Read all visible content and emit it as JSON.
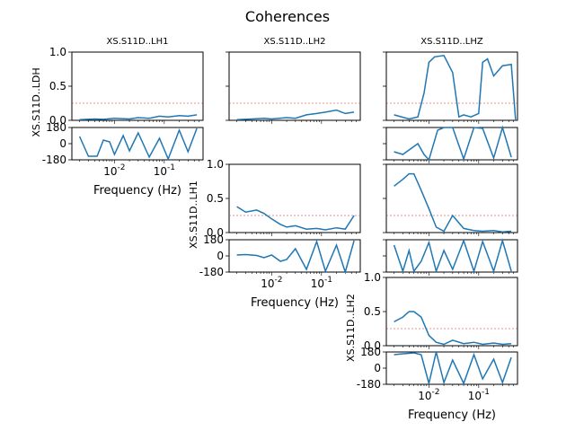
{
  "title": "Coherences",
  "chart_data": [
    {
      "id": "coh_ldh_lh1",
      "type": "line",
      "kind": "coherence",
      "title": "XS.S11D..LH1",
      "ylabel": "XS.S11D..LDH",
      "xlabel": "",
      "x_scale": "log",
      "xlim": [
        0.0014,
        0.6
      ],
      "ylim": [
        0,
        1.0
      ],
      "yticks": [
        "0.0",
        "0.5",
        "1.0"
      ],
      "reference_line": 0.25,
      "series": [
        {
          "x": [
            0.002,
            0.004,
            0.006,
            0.01,
            0.02,
            0.03,
            0.05,
            0.08,
            0.12,
            0.2,
            0.3,
            0.45
          ],
          "y": [
            0.01,
            0.02,
            0.015,
            0.03,
            0.02,
            0.04,
            0.03,
            0.06,
            0.05,
            0.07,
            0.06,
            0.08
          ]
        }
      ]
    },
    {
      "id": "ph_ldh_lh1",
      "type": "line",
      "kind": "phase",
      "xlabel": "Frequency (Hz)",
      "x_scale": "log",
      "xlim": [
        0.0014,
        0.6
      ],
      "ylim": [
        -180,
        180
      ],
      "yticks": [
        "-180",
        "0",
        "180"
      ],
      "xticks": [
        "10^-2",
        "10^-1"
      ],
      "series": [
        {
          "x": [
            0.002,
            0.003,
            0.0045,
            0.006,
            0.008,
            0.01,
            0.015,
            0.02,
            0.03,
            0.05,
            0.08,
            0.12,
            0.2,
            0.3,
            0.45
          ],
          "y": [
            80,
            -140,
            -140,
            40,
            20,
            -120,
            90,
            -80,
            120,
            -150,
            60,
            -170,
            150,
            -90,
            170
          ]
        }
      ]
    },
    {
      "id": "coh_ldh_lh2",
      "type": "line",
      "kind": "coherence",
      "title": "XS.S11D..LH2",
      "ylabel": "",
      "xlabel": "",
      "x_scale": "log",
      "xlim": [
        0.0014,
        0.6
      ],
      "ylim": [
        0,
        1.0
      ],
      "yticks": [
        "",
        "",
        ""
      ],
      "reference_line": 0.25,
      "series": [
        {
          "x": [
            0.002,
            0.004,
            0.007,
            0.01,
            0.02,
            0.03,
            0.05,
            0.08,
            0.12,
            0.2,
            0.3,
            0.45
          ],
          "y": [
            0.01,
            0.02,
            0.03,
            0.02,
            0.04,
            0.03,
            0.08,
            0.1,
            0.12,
            0.15,
            0.1,
            0.12
          ]
        }
      ]
    },
    {
      "id": "coh_ldh_lhz",
      "type": "line",
      "kind": "coherence",
      "title": "XS.S11D..LHZ",
      "ylabel": "",
      "xlabel": "",
      "x_scale": "log",
      "xlim": [
        0.0014,
        0.6
      ],
      "ylim": [
        0,
        1.0
      ],
      "yticks": [
        "",
        "",
        ""
      ],
      "reference_line": 0.25,
      "series": [
        {
          "x": [
            0.002,
            0.004,
            0.006,
            0.008,
            0.01,
            0.013,
            0.02,
            0.03,
            0.04,
            0.05,
            0.07,
            0.1,
            0.12,
            0.15,
            0.2,
            0.3,
            0.45,
            0.55
          ],
          "y": [
            0.08,
            0.02,
            0.05,
            0.4,
            0.85,
            0.93,
            0.95,
            0.7,
            0.05,
            0.08,
            0.05,
            0.1,
            0.85,
            0.9,
            0.65,
            0.8,
            0.82,
            0.0
          ]
        }
      ]
    },
    {
      "id": "ph_ldh_lhz",
      "type": "line",
      "kind": "phase",
      "xlabel": "",
      "x_scale": "log",
      "xlim": [
        0.0014,
        0.6
      ],
      "ylim": [
        -180,
        180
      ],
      "yticks": [
        "",
        "",
        ""
      ],
      "series": [
        {
          "x": [
            0.002,
            0.003,
            0.004,
            0.006,
            0.008,
            0.01,
            0.015,
            0.02,
            0.03,
            0.05,
            0.08,
            0.12,
            0.2,
            0.3,
            0.45
          ],
          "y": [
            -90,
            -120,
            -70,
            0,
            -120,
            -180,
            150,
            180,
            180,
            -170,
            180,
            170,
            -160,
            180,
            -150
          ]
        }
      ]
    },
    {
      "id": "coh_lh1_lh2",
      "type": "line",
      "kind": "coherence",
      "ylabel": "XS.S11D..LH1",
      "xlabel": "",
      "x_scale": "log",
      "xlim": [
        0.0014,
        0.6
      ],
      "ylim": [
        0,
        1.0
      ],
      "yticks": [
        "0.0",
        "0.5",
        "1.0"
      ],
      "reference_line": 0.25,
      "series": [
        {
          "x": [
            0.002,
            0.003,
            0.005,
            0.007,
            0.01,
            0.015,
            0.02,
            0.03,
            0.05,
            0.08,
            0.12,
            0.2,
            0.3,
            0.45
          ],
          "y": [
            0.38,
            0.3,
            0.33,
            0.28,
            0.2,
            0.12,
            0.08,
            0.1,
            0.05,
            0.06,
            0.04,
            0.07,
            0.05,
            0.25
          ]
        }
      ]
    },
    {
      "id": "ph_lh1_lh2",
      "type": "line",
      "kind": "phase",
      "xlabel": "Frequency (Hz)",
      "x_scale": "log",
      "xlim": [
        0.0014,
        0.6
      ],
      "ylim": [
        -180,
        180
      ],
      "yticks": [
        "-180",
        "0",
        "180"
      ],
      "xticks": [
        "10^-2",
        "10^-1"
      ],
      "series": [
        {
          "x": [
            0.002,
            0.003,
            0.005,
            0.007,
            0.01,
            0.015,
            0.02,
            0.03,
            0.05,
            0.08,
            0.12,
            0.2,
            0.3,
            0.45
          ],
          "y": [
            10,
            15,
            5,
            -20,
            10,
            -60,
            -40,
            80,
            -150,
            160,
            -170,
            120,
            -180,
            170
          ]
        }
      ]
    },
    {
      "id": "coh_lh1_lhz",
      "type": "line",
      "kind": "coherence",
      "ylabel": "",
      "xlabel": "",
      "x_scale": "log",
      "xlim": [
        0.0014,
        0.6
      ],
      "ylim": [
        0,
        1.0
      ],
      "yticks": [
        "",
        "",
        ""
      ],
      "reference_line": 0.25,
      "series": [
        {
          "x": [
            0.002,
            0.003,
            0.004,
            0.005,
            0.007,
            0.01,
            0.014,
            0.02,
            0.03,
            0.05,
            0.08,
            0.12,
            0.2,
            0.3,
            0.45
          ],
          "y": [
            0.68,
            0.78,
            0.86,
            0.86,
            0.62,
            0.35,
            0.08,
            0.02,
            0.25,
            0.06,
            0.03,
            0.02,
            0.03,
            0.01,
            0.02
          ]
        }
      ]
    },
    {
      "id": "ph_lh1_lhz",
      "type": "line",
      "kind": "phase",
      "xlabel": "",
      "x_scale": "log",
      "xlim": [
        0.0014,
        0.6
      ],
      "ylim": [
        -180,
        180
      ],
      "yticks": [
        "",
        "",
        ""
      ],
      "series": [
        {
          "x": [
            0.002,
            0.003,
            0.004,
            0.005,
            0.007,
            0.01,
            0.014,
            0.02,
            0.03,
            0.05,
            0.08,
            0.12,
            0.2,
            0.3,
            0.45
          ],
          "y": [
            120,
            -170,
            60,
            -170,
            -60,
            150,
            -170,
            60,
            -150,
            170,
            -170,
            160,
            -170,
            170,
            -170
          ]
        }
      ]
    },
    {
      "id": "coh_lh2_lhz",
      "type": "line",
      "kind": "coherence",
      "ylabel": "XS.S11D..LH2",
      "xlabel": "",
      "x_scale": "log",
      "xlim": [
        0.0014,
        0.6
      ],
      "ylim": [
        0,
        1.0
      ],
      "yticks": [
        "0.0",
        "0.5",
        "1.0"
      ],
      "reference_line": 0.25,
      "series": [
        {
          "x": [
            0.002,
            0.003,
            0.004,
            0.005,
            0.007,
            0.01,
            0.014,
            0.02,
            0.03,
            0.05,
            0.08,
            0.12,
            0.2,
            0.3,
            0.45
          ],
          "y": [
            0.35,
            0.42,
            0.5,
            0.5,
            0.42,
            0.15,
            0.05,
            0.02,
            0.08,
            0.03,
            0.05,
            0.02,
            0.04,
            0.02,
            0.03
          ]
        }
      ]
    },
    {
      "id": "ph_lh2_lhz",
      "type": "line",
      "kind": "phase",
      "xlabel": "Frequency (Hz)",
      "x_scale": "log",
      "xlim": [
        0.0014,
        0.6
      ],
      "ylim": [
        -180,
        180
      ],
      "yticks": [
        "-180",
        "0",
        "180"
      ],
      "xticks": [
        "10^-2",
        "10^-1"
      ],
      "series": [
        {
          "x": [
            0.002,
            0.003,
            0.004,
            0.005,
            0.007,
            0.01,
            0.014,
            0.02,
            0.03,
            0.05,
            0.08,
            0.12,
            0.2,
            0.3,
            0.45
          ],
          "y": [
            150,
            160,
            165,
            170,
            150,
            -170,
            180,
            -160,
            90,
            -170,
            150,
            -120,
            100,
            -160,
            120
          ]
        }
      ]
    }
  ]
}
